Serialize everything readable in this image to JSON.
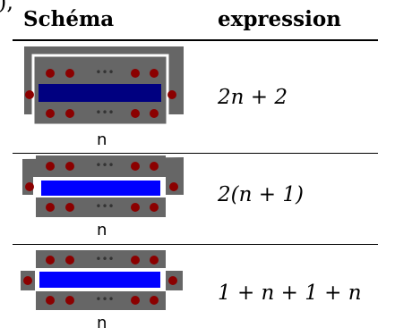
{
  "top_fragment": "),",
  "headers": {
    "schema": "Schéma",
    "expression": "expression"
  },
  "rows": [
    {
      "n_label": "n",
      "expression": "2n + 2",
      "dots": "•••",
      "bar_color": "#000080"
    },
    {
      "n_label": "n",
      "expression": "2(n + 1)",
      "dots": "•••",
      "bar_color": "#0000ff"
    },
    {
      "n_label": "n",
      "expression": "1 + n + 1 + n",
      "dots": "•••",
      "bar_color": "#0000ff"
    }
  ],
  "colors": {
    "tile": "#666666",
    "bead": "#8b0000",
    "frame": "#ffffff"
  }
}
